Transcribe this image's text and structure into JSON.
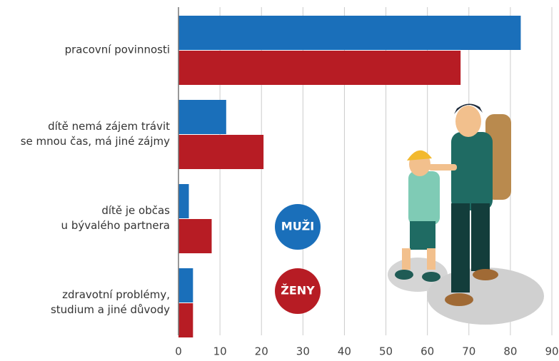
{
  "chart_data": {
    "type": "barh",
    "categories": [
      "pracovní povinnosti",
      "dítě nemá zájem trávit\nse mnou čas, má jiné zájmy",
      "dítě je občas\nu bývalého partnera",
      "zdravotní problémy,\nstudium a jiné důvody"
    ],
    "series": [
      {
        "name": "MUŽI",
        "color": "#1a6fba",
        "values": [
          82.5,
          11.5,
          2.5,
          3.5
        ]
      },
      {
        "name": "ŽENY",
        "color": "#b71c24",
        "values": [
          68,
          20.5,
          8,
          3.5
        ]
      }
    ],
    "xlim": [
      0,
      90
    ],
    "xticks": [
      0,
      10,
      20,
      30,
      40,
      50,
      60,
      70,
      80,
      90
    ],
    "grid": true
  }
}
